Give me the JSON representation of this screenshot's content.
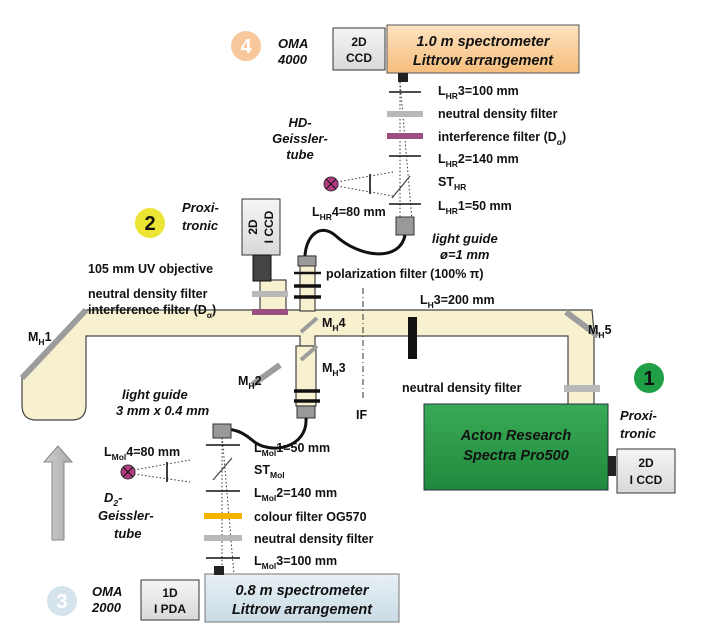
{
  "labels": {
    "num1": "1",
    "num2": "2",
    "num3": "3",
    "num4": "4",
    "oma4000_l1": "OMA",
    "oma4000_l2": "4000",
    "oma2000_l1": "OMA",
    "oma2000_l2": "2000",
    "ccd2d_top_l1": "2D",
    "ccd2d_top_l2": "CCD",
    "spec1_l1": "1.0 m spectrometer",
    "spec1_l2": "Littrow arrangement",
    "lhr3_main": "L",
    "lhr3_sub": "HR",
    "lhr3_rest": "3=100 mm",
    "ndf_hr": "neutral density filter",
    "interf_hr_main": "interference filter (D",
    "interf_hr_sub": "α",
    "interf_hr_end": ")",
    "lhr2_main": "L",
    "lhr2_sub": "HR",
    "lhr2_rest": "2=140 mm",
    "sthr_main": "ST",
    "sthr_sub": "HR",
    "lhr1_main": "L",
    "lhr1_sub": "HR",
    "lhr1_rest": "1=50 mm",
    "hd_l1": "HD-",
    "hd_l2": "Geissler-",
    "hd_l3": "tube",
    "lhr4_main": "L",
    "lhr4_sub": "HR",
    "lhr4_rest": "4=80 mm",
    "lg1_l1": "light guide",
    "lg1_l2": "ø=1 mm",
    "pol_filter": "polarization filter (100% π)",
    "proxi2_l1": "Proxi-",
    "proxi2_l2": "tronic",
    "iccd2_l1": "2D",
    "iccd2_l2": "I CCD",
    "uv_obj": "105 mm UV objective",
    "ndf_2": "neutral density filter",
    "interf_2_main": "interference filter (D",
    "interf_2_sub": "α",
    "interf_2_end": ")",
    "mh1_main": "M",
    "mh1_sub": "H",
    "mh1_rest": "1",
    "mh4_main": "M",
    "mh4_sub": "H",
    "mh4_rest": "4",
    "lh3_main": "L",
    "lh3_sub": "H",
    "lh3_rest": "3=200 mm",
    "mh5_main": "M",
    "mh5_sub": "H",
    "mh5_rest": "5",
    "mh2_main": "M",
    "mh2_sub": "H",
    "mh2_rest": "2",
    "mh3_main": "M",
    "mh3_sub": "H",
    "mh3_rest": "3",
    "if_label": "IF",
    "ndf_1": "neutral density filter",
    "lg2_l1": "light guide",
    "lg2_l2": "3 mm x 0.4 mm",
    "proxi1_l1": "Proxi-",
    "proxi1_l2": "tronic",
    "acton_l1": "Acton Research",
    "acton_l2": "Spectra Pro500",
    "iccd1_l1": "2D",
    "iccd1_l2": "I CCD",
    "lmol4_main": "L",
    "lmol4_sub": "Mol",
    "lmol4_rest": "4=80 mm",
    "lmol1_main": "L",
    "lmol1_sub": "Mol",
    "lmol1_rest": "1=50 mm",
    "stmol_main": "ST",
    "stmol_sub": "Mol",
    "lmol2_main": "L",
    "lmol2_sub": "Mol",
    "lmol2_rest": "2=140 mm",
    "d2_l1": "D",
    "d2_sub": "2",
    "d2_l1_end": "-",
    "d2_l2": "Geissler-",
    "d2_l3": "tube",
    "og570": "colour filter OG570",
    "ndf_mol": "neutral density filter",
    "lmol3_main": "L",
    "lmol3_sub": "Mol",
    "lmol3_rest": "3=100 mm",
    "pda_l1": "1D",
    "pda_l2": "I PDA",
    "spec3_l1": "0.8 m spectrometer",
    "spec3_l2": "Littrow arrangement"
  },
  "colors": {
    "beam": "#f7f1cf",
    "spectrometer_top": "#f9c98e",
    "acton": "#2e9b4a",
    "spectrometer_bottom": "#dbe8ef",
    "circle1": "#1fa046",
    "circle2": "#ece534",
    "circle3": "#d5e4ec",
    "circle4": "#f8c89c",
    "interference_filter": "#9b4f80",
    "colour_filter": "#f4b400",
    "nd_filter": "#b8b8b8",
    "geissler_tube": "#b43a86"
  }
}
